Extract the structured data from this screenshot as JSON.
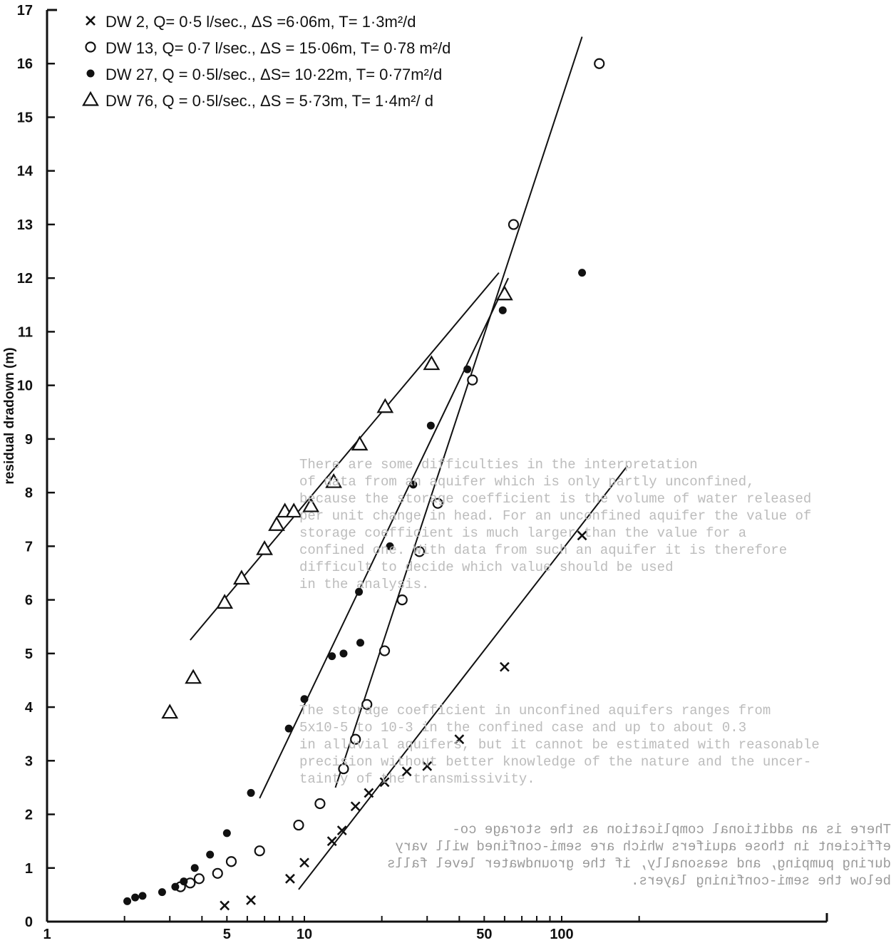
{
  "chart_data": {
    "type": "scatter",
    "title": "",
    "xlabel": "",
    "ylabel": "residual  dradown (m)",
    "xscale": "log",
    "xlim": [
      1,
      200
    ],
    "ylim": [
      0,
      17
    ],
    "grid": false,
    "legend_position": "top-left",
    "x_ticks": [
      "1",
      "5",
      "10",
      "50",
      "100"
    ],
    "y_ticks": [
      "0",
      "1",
      "2",
      "3",
      "4",
      "5",
      "6",
      "7",
      "8",
      "9",
      "10",
      "11",
      "12",
      "13",
      "14",
      "15",
      "16",
      "17"
    ],
    "series": [
      {
        "name": "DW 2,  Q= 0·5 l/sec.,  ΔS  =6·06m, T= 1·3m²/d",
        "marker": "x",
        "points": [
          [
            4.9,
            0.3
          ],
          [
            6.2,
            0.4
          ],
          [
            8.8,
            0.8
          ],
          [
            10,
            1.1
          ],
          [
            12.8,
            1.5
          ],
          [
            14,
            1.7
          ],
          [
            15.8,
            2.15
          ],
          [
            17.8,
            2.4
          ],
          [
            20.5,
            2.6
          ],
          [
            25,
            2.8
          ],
          [
            30,
            2.9
          ],
          [
            40,
            3.4
          ],
          [
            60,
            4.75
          ],
          [
            120,
            7.2
          ]
        ],
        "fit_line": [
          [
            9.5,
            0.6
          ],
          [
            180,
            8.5
          ]
        ]
      },
      {
        "name": "DW 13,  Q= 0·7 l/sec., ΔS = 15·06m, T= 0·78 m²/d",
        "marker": "circle-open",
        "points": [
          [
            3.3,
            0.65
          ],
          [
            3.6,
            0.72
          ],
          [
            3.9,
            0.8
          ],
          [
            4.6,
            0.9
          ],
          [
            5.2,
            1.12
          ],
          [
            6.7,
            1.32
          ],
          [
            9.5,
            1.8
          ],
          [
            11.5,
            2.2
          ],
          [
            14.2,
            2.85
          ],
          [
            15.8,
            3.4
          ],
          [
            17.5,
            4.05
          ],
          [
            20.5,
            5.05
          ],
          [
            24,
            6.0
          ],
          [
            28,
            6.9
          ],
          [
            33,
            7.8
          ],
          [
            45,
            10.1
          ],
          [
            65,
            13.0
          ],
          [
            140,
            16.0
          ]
        ],
        "fit_line": [
          [
            13.2,
            2.5
          ],
          [
            120,
            16.5
          ]
        ]
      },
      {
        "name": "DW 27,  Q = 0·5l/sec.,  ΔS= 10·22m, T= 0·77m²/d",
        "marker": "circle-filled",
        "points": [
          [
            2.05,
            0.38
          ],
          [
            2.2,
            0.45
          ],
          [
            2.35,
            0.48
          ],
          [
            2.8,
            0.55
          ],
          [
            3.15,
            0.65
          ],
          [
            3.4,
            0.75
          ],
          [
            3.75,
            1.0
          ],
          [
            4.3,
            1.25
          ],
          [
            5.0,
            1.65
          ],
          [
            6.2,
            2.4
          ],
          [
            8.7,
            3.6
          ],
          [
            10,
            4.15
          ],
          [
            12.8,
            4.95
          ],
          [
            14.2,
            5.0
          ],
          [
            16.5,
            5.2
          ],
          [
            16.3,
            6.15
          ],
          [
            21.5,
            7.0
          ],
          [
            26.5,
            8.15
          ],
          [
            31,
            9.25
          ],
          [
            43,
            10.3
          ],
          [
            59,
            11.4
          ],
          [
            120,
            12.1
          ]
        ],
        "fit_line": [
          [
            6.7,
            2.3
          ],
          [
            62,
            12.0
          ]
        ]
      },
      {
        "name": "DW 76,  Q = 0·5l/sec.,  ΔS = 5·73m,  T= 1·4m²/ d",
        "marker": "triangle-open",
        "points": [
          [
            3.0,
            3.9
          ],
          [
            3.7,
            4.55
          ],
          [
            4.9,
            5.95
          ],
          [
            5.7,
            6.4
          ],
          [
            7.0,
            6.95
          ],
          [
            7.8,
            7.4
          ],
          [
            8.4,
            7.65
          ],
          [
            9.1,
            7.65
          ],
          [
            10.6,
            7.75
          ],
          [
            13.0,
            8.2
          ],
          [
            16.4,
            8.9
          ],
          [
            20.6,
            9.6
          ],
          [
            31.2,
            10.4
          ],
          [
            60,
            11.7
          ]
        ],
        "fit_line": [
          [
            3.6,
            5.25
          ],
          [
            57,
            12.1
          ]
        ]
      }
    ],
    "scan_bleed_text": {
      "para1": "There are some difficulties in the interpretation\nof data from an aquifer which is only partly unconfined,\nbecause the storage coefficient is the volume of water released\nper unit change in head. For an unconfined aquifer the value of\nstorage coefficient is much larger than the value for a\nconfined one. With data from such an aquifer it is therefore\ndifficult to decide which value should be used\nin the analysis.",
      "para2": "The storage coefficient in unconfined aquifers ranges from\n5x10-5 to 10-3 in the confined case and up to about 0.3\nin alluvial aquifers, but it cannot be estimated with reasonable\nprecision without better knowledge of the nature and the uncer-\ntainty of the transmissivity.",
      "para3": "There is an additional complication as the storage co-\nefficient in those aquifers which are semi-confined will vary\nduring pumping, and seasonally, if the groundwater level falls\nbelow the semi-confining layers."
    }
  }
}
